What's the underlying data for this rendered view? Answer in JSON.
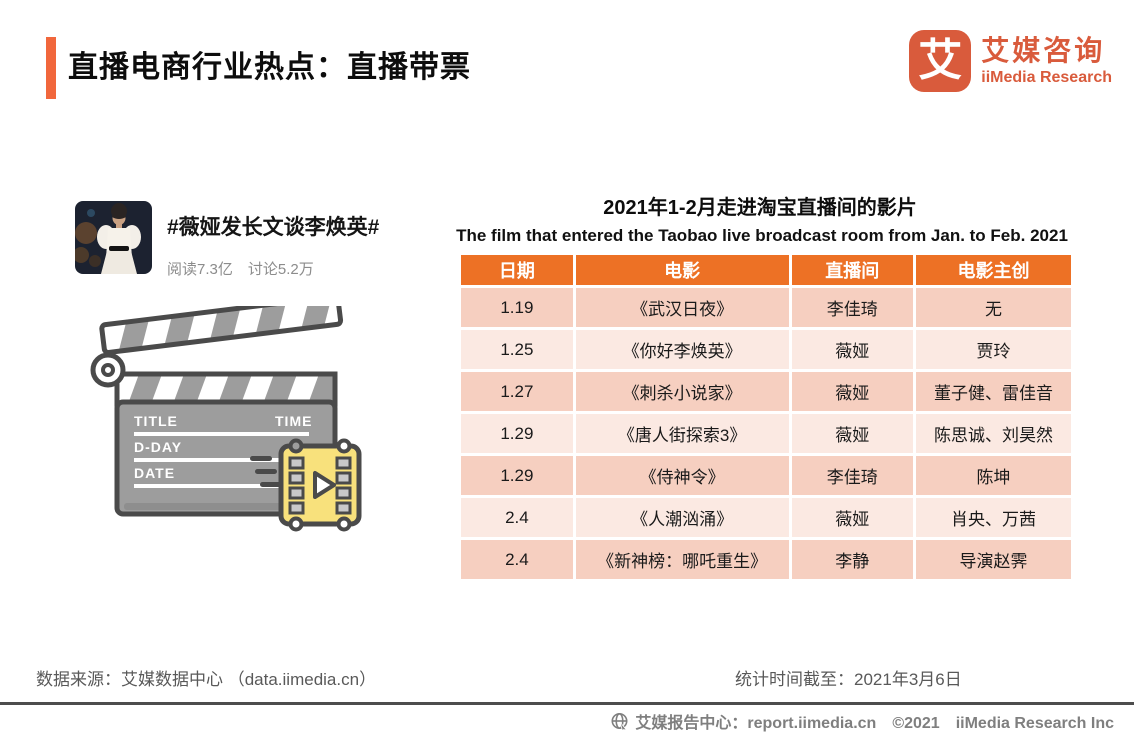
{
  "header": {
    "title": "直播电商行业热点：直播带票",
    "logo": {
      "icon_char": "艾",
      "brand_cn": "艾媒咨询",
      "brand_en": "iiMedia Research"
    }
  },
  "weibo_card": {
    "hashtag": "#薇娅发长文谈李焕英#",
    "stats": "阅读7.3亿　讨论5.2万"
  },
  "clapperboard": {
    "label_title": "TITLE",
    "label_time": "TIME",
    "label_dday": "D-DAY",
    "label_date": "DATE"
  },
  "table_section": {
    "title_cn": "2021年1-2月走进淘宝直播间的影片",
    "title_en": "The film that entered the Taobao live broadcast room from Jan. to Feb. 2021",
    "columns": [
      "日期",
      "电影",
      "直播间",
      "电影主创"
    ],
    "col_widths": [
      "18.6%",
      "35.4%",
      "20.2%",
      "25.8%"
    ],
    "rows": [
      [
        "1.19",
        "《武汉日夜》",
        "李佳琦",
        "无"
      ],
      [
        "1.25",
        "《你好李焕英》",
        "薇娅",
        "贾玲"
      ],
      [
        "1.27",
        "《刺杀小说家》",
        "薇娅",
        "董子健、雷佳音"
      ],
      [
        "1.29",
        "《唐人街探索3》",
        "薇娅",
        "陈思诚、刘昊然"
      ],
      [
        "1.29",
        "《侍神令》",
        "李佳琦",
        "陈坤"
      ],
      [
        "2.4",
        "《人潮汹涌》",
        "薇娅",
        "肖央、万茜"
      ],
      [
        "2.4",
        "《新神榜：哪吒重生》",
        "李静",
        "导演赵霁"
      ]
    ]
  },
  "footer": {
    "source": "数据来源：艾媒数据中心 （data.iimedia.cn）",
    "deadline": "统计时间截至：2021年3月6日",
    "bottom_bar": "艾媒报告中心：report.iimedia.cn　©2021　iiMedia Research Inc"
  },
  "colors": {
    "accent_orange": "#F1673C",
    "brand_orange": "#D95B3C",
    "table_header_orange": "#ED7125",
    "row_dark": "#F6CFC0",
    "row_light": "#FBE9E2",
    "footer_gray": "#595959"
  }
}
